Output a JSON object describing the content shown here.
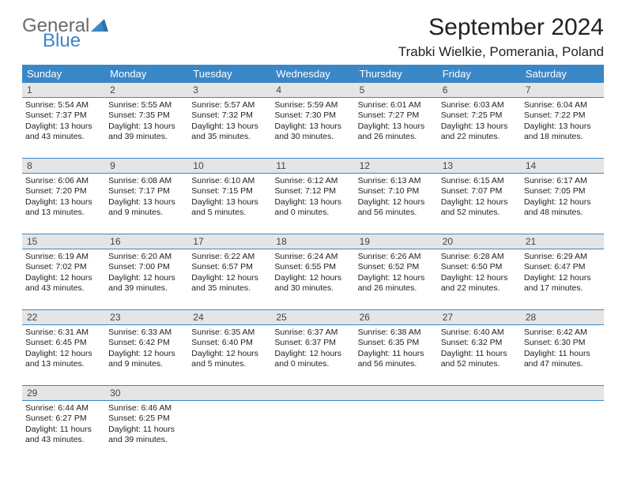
{
  "brand": {
    "word1": "General",
    "word2": "Blue"
  },
  "title": "September 2024",
  "location": "Trabki Wielkie, Pomerania, Poland",
  "colors": {
    "accent": "#3a87c8",
    "header_text": "#ffffff",
    "daynum_bg": "#e5e5e5",
    "body_text": "#222222",
    "logo_gray": "#6a6a6a",
    "logo_blue": "#3a87c8",
    "background": "#ffffff"
  },
  "days_of_week": [
    "Sunday",
    "Monday",
    "Tuesday",
    "Wednesday",
    "Thursday",
    "Friday",
    "Saturday"
  ],
  "weeks": [
    {
      "nums": [
        "1",
        "2",
        "3",
        "4",
        "5",
        "6",
        "7"
      ],
      "cells": [
        {
          "sunrise": "Sunrise: 5:54 AM",
          "sunset": "Sunset: 7:37 PM",
          "day1": "Daylight: 13 hours",
          "day2": "and 43 minutes."
        },
        {
          "sunrise": "Sunrise: 5:55 AM",
          "sunset": "Sunset: 7:35 PM",
          "day1": "Daylight: 13 hours",
          "day2": "and 39 minutes."
        },
        {
          "sunrise": "Sunrise: 5:57 AM",
          "sunset": "Sunset: 7:32 PM",
          "day1": "Daylight: 13 hours",
          "day2": "and 35 minutes."
        },
        {
          "sunrise": "Sunrise: 5:59 AM",
          "sunset": "Sunset: 7:30 PM",
          "day1": "Daylight: 13 hours",
          "day2": "and 30 minutes."
        },
        {
          "sunrise": "Sunrise: 6:01 AM",
          "sunset": "Sunset: 7:27 PM",
          "day1": "Daylight: 13 hours",
          "day2": "and 26 minutes."
        },
        {
          "sunrise": "Sunrise: 6:03 AM",
          "sunset": "Sunset: 7:25 PM",
          "day1": "Daylight: 13 hours",
          "day2": "and 22 minutes."
        },
        {
          "sunrise": "Sunrise: 6:04 AM",
          "sunset": "Sunset: 7:22 PM",
          "day1": "Daylight: 13 hours",
          "day2": "and 18 minutes."
        }
      ]
    },
    {
      "nums": [
        "8",
        "9",
        "10",
        "11",
        "12",
        "13",
        "14"
      ],
      "cells": [
        {
          "sunrise": "Sunrise: 6:06 AM",
          "sunset": "Sunset: 7:20 PM",
          "day1": "Daylight: 13 hours",
          "day2": "and 13 minutes."
        },
        {
          "sunrise": "Sunrise: 6:08 AM",
          "sunset": "Sunset: 7:17 PM",
          "day1": "Daylight: 13 hours",
          "day2": "and 9 minutes."
        },
        {
          "sunrise": "Sunrise: 6:10 AM",
          "sunset": "Sunset: 7:15 PM",
          "day1": "Daylight: 13 hours",
          "day2": "and 5 minutes."
        },
        {
          "sunrise": "Sunrise: 6:12 AM",
          "sunset": "Sunset: 7:12 PM",
          "day1": "Daylight: 13 hours",
          "day2": "and 0 minutes."
        },
        {
          "sunrise": "Sunrise: 6:13 AM",
          "sunset": "Sunset: 7:10 PM",
          "day1": "Daylight: 12 hours",
          "day2": "and 56 minutes."
        },
        {
          "sunrise": "Sunrise: 6:15 AM",
          "sunset": "Sunset: 7:07 PM",
          "day1": "Daylight: 12 hours",
          "day2": "and 52 minutes."
        },
        {
          "sunrise": "Sunrise: 6:17 AM",
          "sunset": "Sunset: 7:05 PM",
          "day1": "Daylight: 12 hours",
          "day2": "and 48 minutes."
        }
      ]
    },
    {
      "nums": [
        "15",
        "16",
        "17",
        "18",
        "19",
        "20",
        "21"
      ],
      "cells": [
        {
          "sunrise": "Sunrise: 6:19 AM",
          "sunset": "Sunset: 7:02 PM",
          "day1": "Daylight: 12 hours",
          "day2": "and 43 minutes."
        },
        {
          "sunrise": "Sunrise: 6:20 AM",
          "sunset": "Sunset: 7:00 PM",
          "day1": "Daylight: 12 hours",
          "day2": "and 39 minutes."
        },
        {
          "sunrise": "Sunrise: 6:22 AM",
          "sunset": "Sunset: 6:57 PM",
          "day1": "Daylight: 12 hours",
          "day2": "and 35 minutes."
        },
        {
          "sunrise": "Sunrise: 6:24 AM",
          "sunset": "Sunset: 6:55 PM",
          "day1": "Daylight: 12 hours",
          "day2": "and 30 minutes."
        },
        {
          "sunrise": "Sunrise: 6:26 AM",
          "sunset": "Sunset: 6:52 PM",
          "day1": "Daylight: 12 hours",
          "day2": "and 26 minutes."
        },
        {
          "sunrise": "Sunrise: 6:28 AM",
          "sunset": "Sunset: 6:50 PM",
          "day1": "Daylight: 12 hours",
          "day2": "and 22 minutes."
        },
        {
          "sunrise": "Sunrise: 6:29 AM",
          "sunset": "Sunset: 6:47 PM",
          "day1": "Daylight: 12 hours",
          "day2": "and 17 minutes."
        }
      ]
    },
    {
      "nums": [
        "22",
        "23",
        "24",
        "25",
        "26",
        "27",
        "28"
      ],
      "cells": [
        {
          "sunrise": "Sunrise: 6:31 AM",
          "sunset": "Sunset: 6:45 PM",
          "day1": "Daylight: 12 hours",
          "day2": "and 13 minutes."
        },
        {
          "sunrise": "Sunrise: 6:33 AM",
          "sunset": "Sunset: 6:42 PM",
          "day1": "Daylight: 12 hours",
          "day2": "and 9 minutes."
        },
        {
          "sunrise": "Sunrise: 6:35 AM",
          "sunset": "Sunset: 6:40 PM",
          "day1": "Daylight: 12 hours",
          "day2": "and 5 minutes."
        },
        {
          "sunrise": "Sunrise: 6:37 AM",
          "sunset": "Sunset: 6:37 PM",
          "day1": "Daylight: 12 hours",
          "day2": "and 0 minutes."
        },
        {
          "sunrise": "Sunrise: 6:38 AM",
          "sunset": "Sunset: 6:35 PM",
          "day1": "Daylight: 11 hours",
          "day2": "and 56 minutes."
        },
        {
          "sunrise": "Sunrise: 6:40 AM",
          "sunset": "Sunset: 6:32 PM",
          "day1": "Daylight: 11 hours",
          "day2": "and 52 minutes."
        },
        {
          "sunrise": "Sunrise: 6:42 AM",
          "sunset": "Sunset: 6:30 PM",
          "day1": "Daylight: 11 hours",
          "day2": "and 47 minutes."
        }
      ]
    },
    {
      "nums": [
        "29",
        "30",
        "",
        "",
        "",
        "",
        ""
      ],
      "cells": [
        {
          "sunrise": "Sunrise: 6:44 AM",
          "sunset": "Sunset: 6:27 PM",
          "day1": "Daylight: 11 hours",
          "day2": "and 43 minutes."
        },
        {
          "sunrise": "Sunrise: 6:46 AM",
          "sunset": "Sunset: 6:25 PM",
          "day1": "Daylight: 11 hours",
          "day2": "and 39 minutes."
        },
        {
          "sunrise": "",
          "sunset": "",
          "day1": "",
          "day2": ""
        },
        {
          "sunrise": "",
          "sunset": "",
          "day1": "",
          "day2": ""
        },
        {
          "sunrise": "",
          "sunset": "",
          "day1": "",
          "day2": ""
        },
        {
          "sunrise": "",
          "sunset": "",
          "day1": "",
          "day2": ""
        },
        {
          "sunrise": "",
          "sunset": "",
          "day1": "",
          "day2": ""
        }
      ]
    }
  ]
}
